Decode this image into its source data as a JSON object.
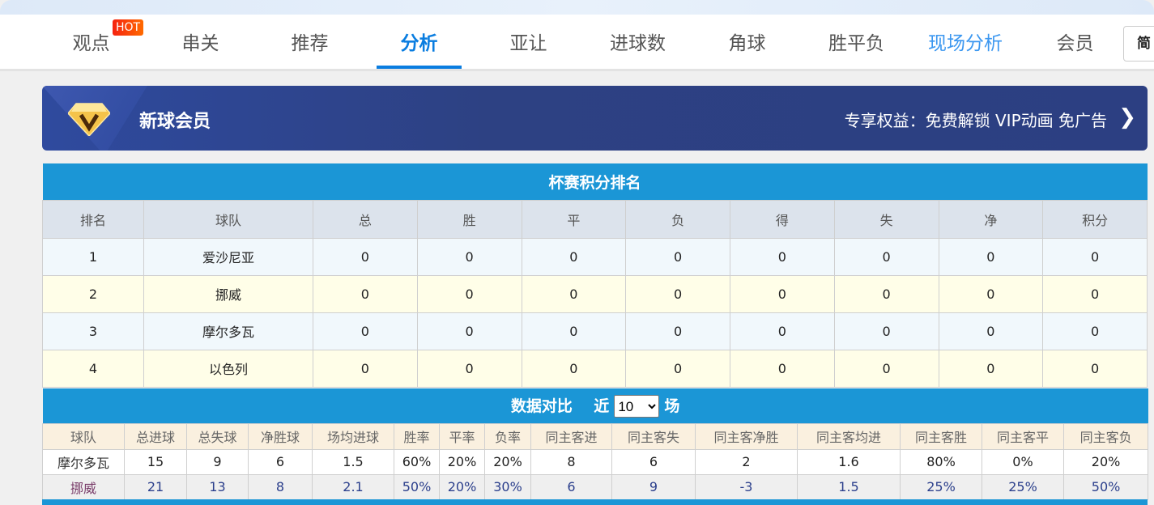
{
  "nav": {
    "items": [
      {
        "label": "观点"
      },
      {
        "label": "串关"
      },
      {
        "label": "推荐"
      },
      {
        "label": "分析"
      },
      {
        "label": "亚让"
      },
      {
        "label": "进球数"
      },
      {
        "label": "角球"
      },
      {
        "label": "胜平负"
      },
      {
        "label": "现场分析"
      },
      {
        "label": "会员"
      }
    ],
    "active": "分析",
    "hot_badge": "HOT",
    "lang_button": "简"
  },
  "banner": {
    "title": "新球会员",
    "perk": "专享权益：免费解锁 VIP动画 免广告",
    "icon": "vip-diamond-icon"
  },
  "standings": {
    "title": "杯赛积分排名",
    "headers": [
      "排名",
      "球队",
      "总",
      "胜",
      "平",
      "负",
      "得",
      "失",
      "净",
      "积分"
    ],
    "rows": [
      [
        "1",
        "爱沙尼亚",
        "0",
        "0",
        "0",
        "0",
        "0",
        "0",
        "0",
        "0"
      ],
      [
        "2",
        "挪威",
        "0",
        "0",
        "0",
        "0",
        "0",
        "0",
        "0",
        "0"
      ],
      [
        "3",
        "摩尔多瓦",
        "0",
        "0",
        "0",
        "0",
        "0",
        "0",
        "0",
        "0"
      ],
      [
        "4",
        "以色列",
        "0",
        "0",
        "0",
        "0",
        "0",
        "0",
        "0",
        "0"
      ]
    ]
  },
  "compare": {
    "title": "数据对比",
    "near": "近",
    "unit": "场",
    "select_value": "10",
    "headers": [
      "球队",
      "总进球",
      "总失球",
      "净胜球",
      "场均进球",
      "胜率",
      "平率",
      "负率",
      "同主客进",
      "同主客失",
      "同主客净胜",
      "同主客均进",
      "同主客胜",
      "同主客平",
      "同主客负"
    ],
    "rows": [
      [
        "摩尔多瓦",
        "15",
        "9",
        "6",
        "1.5",
        "60%",
        "20%",
        "20%",
        "8",
        "6",
        "2",
        "1.6",
        "80%",
        "0%",
        "20%"
      ],
      [
        "挪威",
        "21",
        "13",
        "8",
        "2.1",
        "50%",
        "20%",
        "30%",
        "6",
        "9",
        "-3",
        "1.5",
        "25%",
        "25%",
        "50%"
      ]
    ]
  },
  "colors": {
    "accent": "#0a7de0",
    "table_header": "#1b96d6",
    "banner": "#2d4183",
    "team_green": "#3b9a3a"
  }
}
